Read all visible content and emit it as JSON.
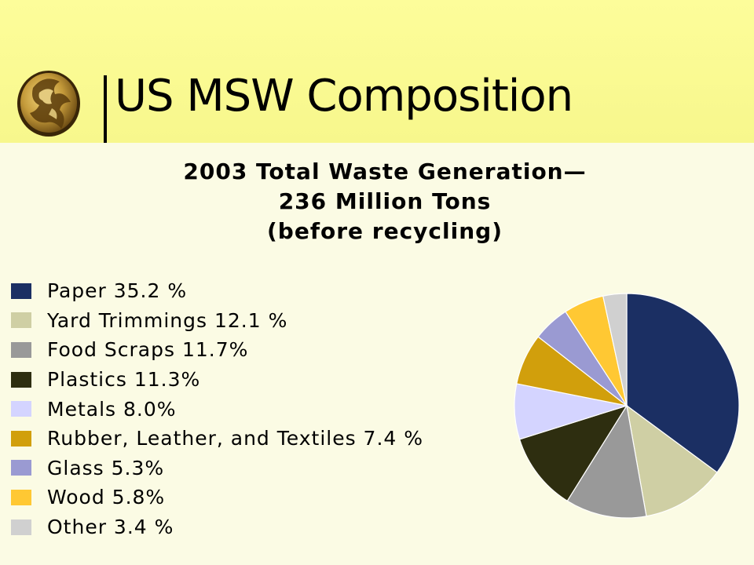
{
  "slide": {
    "title": "US MSW Composition"
  },
  "chart_data": {
    "type": "pie",
    "title_lines": [
      "2003 Total Waste Generation—",
      "236 Million Tons",
      "(before recycling)"
    ],
    "legend_placement": "left",
    "slices": [
      {
        "label": "Paper  35.2 %",
        "name": "Paper",
        "value": 35.2,
        "color": "#1b2f63"
      },
      {
        "label": "Yard Trimmings 12.1 %",
        "name": "Yard Trimmings",
        "value": 12.1,
        "color": "#cfcfa4"
      },
      {
        "label": "Food Scraps 11.7%",
        "name": "Food Scraps",
        "value": 11.7,
        "color": "#999999"
      },
      {
        "label": "Plastics  11.3%",
        "name": "Plastics",
        "value": 11.3,
        "color": "#2e2e10"
      },
      {
        "label": "Metals  8.0%",
        "name": "Metals",
        "value": 8.0,
        "color": "#d4d4ff"
      },
      {
        "label": "Rubber, Leather, and Textiles  7.4 %",
        "name": "Rubber, Leather, and Textiles",
        "value": 7.4,
        "color": "#d19f0c"
      },
      {
        "label": "Glass  5.3%",
        "name": "Glass",
        "value": 5.3,
        "color": "#9a9ad2"
      },
      {
        "label": "Wood  5.8%",
        "name": "Wood",
        "value": 5.8,
        "color": "#ffc833"
      },
      {
        "label": "Other  3.4 %",
        "name": "Other",
        "value": 3.4,
        "color": "#d0d0d0"
      }
    ]
  }
}
